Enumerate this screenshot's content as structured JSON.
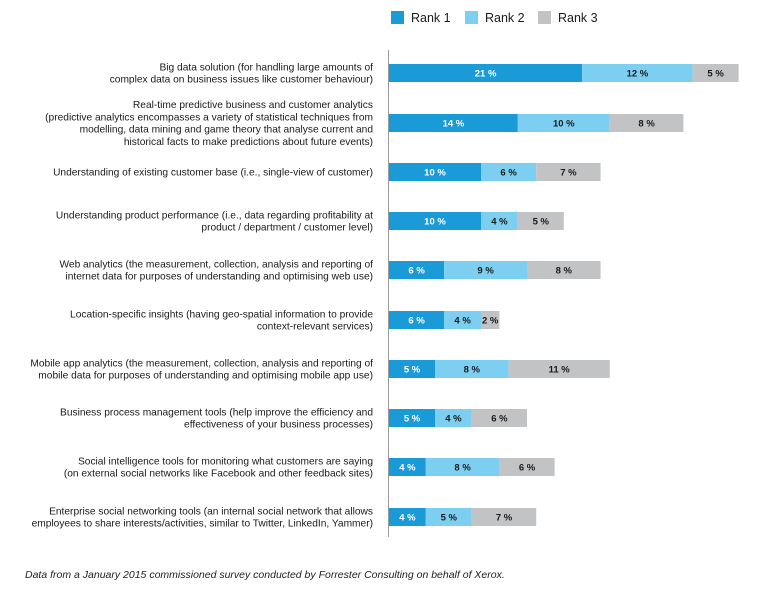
{
  "chart_data": {
    "type": "bar",
    "orientation": "horizontal",
    "stacked": true,
    "legend_position": "top-right",
    "grid": false,
    "series": [
      {
        "name": "Rank 1",
        "color": "#1a9ad6",
        "label_color": "#ffffff",
        "values": [
          21,
          14,
          10,
          10,
          6,
          6,
          5,
          5,
          4,
          4
        ]
      },
      {
        "name": "Rank 2",
        "color": "#7dcff1",
        "label_color": "#1a1a1a",
        "values": [
          12,
          10,
          6,
          4,
          9,
          4,
          8,
          4,
          8,
          5
        ]
      },
      {
        "name": "Rank 3",
        "color": "#c2c3c5",
        "label_color": "#1a1a1a",
        "values": [
          5,
          8,
          7,
          5,
          8,
          2,
          11,
          6,
          6,
          7
        ]
      }
    ],
    "categories": [
      {
        "lines": [
          "Big data solution (for handling large amounts of",
          "complex data on business issues like customer behaviour)"
        ]
      },
      {
        "lines": [
          "Real-time predictive business and customer analytics",
          "(predictive analytics encompasses a variety of statistical techniques from",
          "modelling, data mining and game theory that analyse current and",
          "historical facts to make predictions about future events)"
        ]
      },
      {
        "lines": [
          "Understanding of existing customer base (i.e., single-view of customer)"
        ]
      },
      {
        "lines": [
          "Understanding product performance (i.e., data regarding profitability at",
          "product / department / customer level)"
        ]
      },
      {
        "lines": [
          "Web analytics (the measurement, collection, analysis and reporting of",
          "internet data for purposes of understanding and optimising web use)"
        ]
      },
      {
        "lines": [
          "Location-specific insights (having geo-spatial information to provide",
          "context-relevant services)"
        ]
      },
      {
        "lines": [
          "Mobile app analytics (the measurement, collection, analysis and reporting of",
          "mobile data for purposes of understanding and optimising mobile app use)"
        ]
      },
      {
        "lines": [
          "Business process management tools (help improve the efficiency and",
          "effectiveness of your business processes)"
        ]
      },
      {
        "lines": [
          "Social intelligence tools for monitoring what customers are saying",
          "(on external social networks like Facebook and other feedback sites)"
        ]
      },
      {
        "lines": [
          "Enterprise social networking tools (an internal social network that allows",
          "employees to share interests/activities, similar to Twitter, LinkedIn, Yammer)"
        ]
      }
    ],
    "value_suffix": " %",
    "footnote": "Data from a January 2015 commissioned survey conducted by Forrester Consulting on behalf of Xerox."
  }
}
